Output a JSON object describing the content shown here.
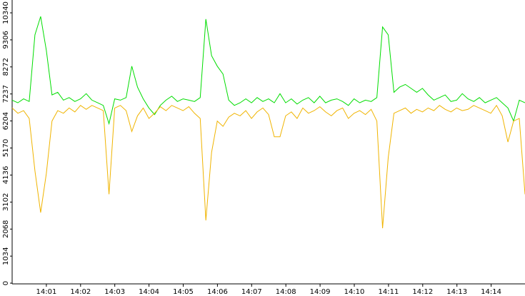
{
  "chart_data": {
    "type": "line",
    "xticks": [
      "14:01",
      "14:02",
      "14:03",
      "14:04",
      "14:05",
      "14:06",
      "14:07",
      "14:08",
      "14:09",
      "14:10",
      "14:11",
      "14:12",
      "14:13",
      "14:14"
    ],
    "ylim": [
      0,
      10340
    ],
    "yticks": [
      0,
      1034,
      2068,
      3102,
      4136,
      5170,
      6204,
      7237,
      8272,
      9306,
      10340
    ],
    "series": [
      {
        "color": "#00dd00",
        "values": [
          7000,
          6900,
          7050,
          6950,
          9500,
          10200,
          8900,
          7200,
          7300,
          7000,
          7100,
          6950,
          7050,
          7250,
          7000,
          6900,
          6800,
          6100,
          7050,
          7000,
          7100,
          8300,
          7500,
          7050,
          6700,
          6450,
          6800,
          7000,
          7150,
          6950,
          7050,
          7000,
          6950,
          7100,
          10100,
          8700,
          8300,
          8000,
          7000,
          6800,
          6900,
          7050,
          6900,
          7100,
          6950,
          7050,
          6900,
          7250,
          6900,
          7050,
          6850,
          7000,
          7100,
          6900,
          7150,
          6900,
          7000,
          7050,
          6950,
          6800,
          7050,
          6900,
          7000,
          6950,
          7100,
          9800,
          9500,
          7300,
          7500,
          7600,
          7450,
          7300,
          7450,
          7200,
          7000,
          7100,
          7200,
          6950,
          7000,
          7250,
          7050,
          6950,
          7100,
          6900,
          7000,
          7100,
          6900,
          6700,
          6200,
          7000,
          6900
        ]
      },
      {
        "color": "#f0b400",
        "values": [
          6700,
          6500,
          6600,
          6300,
          4300,
          2700,
          4200,
          6200,
          6600,
          6500,
          6700,
          6550,
          6800,
          6650,
          6800,
          6700,
          6600,
          3400,
          6700,
          6800,
          6600,
          5800,
          6400,
          6700,
          6300,
          6500,
          6750,
          6600,
          6800,
          6700,
          6600,
          6750,
          6500,
          6300,
          2400,
          5000,
          6200,
          6000,
          6350,
          6500,
          6400,
          6600,
          6300,
          6550,
          6700,
          6450,
          5600,
          5600,
          6400,
          6550,
          6300,
          6700,
          6500,
          6600,
          6750,
          6550,
          6400,
          6600,
          6700,
          6300,
          6500,
          6600,
          6450,
          6650,
          6200,
          2100,
          4800,
          6500,
          6600,
          6700,
          6500,
          6650,
          6550,
          6700,
          6600,
          6800,
          6650,
          6550,
          6700,
          6600,
          6650,
          6800,
          6700,
          6600,
          6500,
          6800,
          6400,
          5400,
          6200,
          6300,
          3400
        ]
      }
    ]
  }
}
